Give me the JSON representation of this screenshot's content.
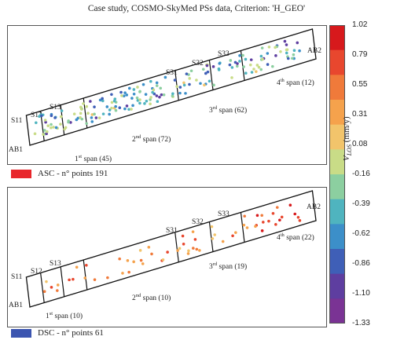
{
  "title": "Case study, COSMO-SkyMed PSs data, Criterion: 'H_GEO'",
  "colorbar": {
    "label": "V_LOS (mm/y)",
    "label_main": "V",
    "label_sub": "LOS",
    "label_unit": " (mm/y)",
    "ticks": [
      "1.02",
      "0.79",
      "0.55",
      "0.31",
      "0.08",
      "-0.16",
      "-0.39",
      "-0.62",
      "-0.86",
      "-1.10",
      "-1.33"
    ],
    "colors": [
      "#d7191c",
      "#e8472e",
      "#f07a3a",
      "#f5a24c",
      "#f2c46b",
      "#c9dc87",
      "#8ccfa0",
      "#4fb4bf",
      "#3c8fc9",
      "#3f5fb7",
      "#5e3ea0",
      "#7a3394"
    ]
  },
  "chart_data": [
    {
      "type": "scatter",
      "panel": "ASC",
      "legend": "ASC - n° points 191",
      "legend_color": "#e8262b",
      "abutments": [
        "AB1",
        "AB2"
      ],
      "piers": [
        "S11",
        "S12",
        "S13",
        "S31",
        "S32",
        "S33"
      ],
      "spans": [
        {
          "base": "1",
          "sup": "st",
          "rest": " span (45)"
        },
        {
          "base": "2",
          "sup": "nd",
          "rest": " span (72)"
        },
        {
          "base": "3",
          "sup": "rd",
          "rest": " span (62)"
        },
        {
          "base": "4",
          "sup": "th",
          "rest": " span (12)"
        }
      ],
      "clim": [
        -1.33,
        1.02
      ]
    },
    {
      "type": "scatter",
      "panel": "DSC",
      "legend": "DSC - n° points 61",
      "legend_color": "#3b55b0",
      "abutments": [
        "AB1",
        "AB2"
      ],
      "piers": [
        "S11",
        "S12",
        "S13",
        "S31",
        "S32",
        "S33"
      ],
      "spans": [
        {
          "base": "1",
          "sup": "st",
          "rest": " span (10)"
        },
        {
          "base": "2",
          "sup": "nd",
          "rest": " span (10)"
        },
        {
          "base": "3",
          "sup": "rd",
          "rest": " span (19)"
        },
        {
          "base": "4",
          "sup": "th",
          "rest": " span (22)"
        }
      ],
      "clim": [
        -1.33,
        1.02
      ]
    }
  ]
}
